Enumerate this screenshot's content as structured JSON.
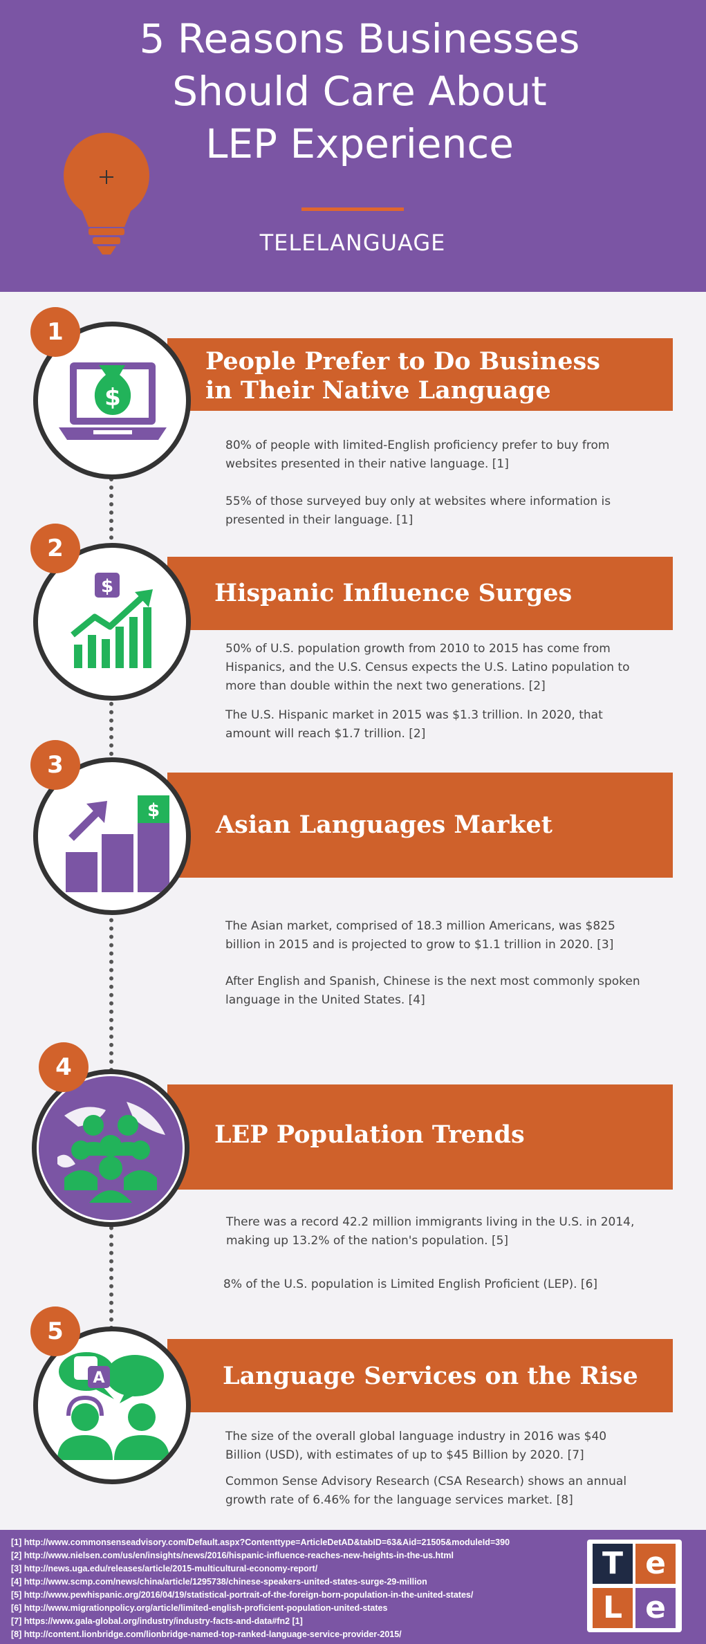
{
  "header": {
    "title_lines": [
      "5 Reasons Businesses",
      "Should Care About",
      "LEP Experience"
    ],
    "brand": "TELELANGUAGE",
    "icon": "lightbulb-icon"
  },
  "sections": [
    {
      "number": "1",
      "title_lines": [
        "People Prefer to Do Business",
        "in Their Native Language"
      ],
      "icon": "laptop-money-icon",
      "paragraphs": [
        "80% of people with limited-English proficiency prefer to buy from websites presented in their native language. [1]",
        "55% of those surveyed buy only at websites where information is presented in their language. [1]"
      ]
    },
    {
      "number": "2",
      "title_lines": [
        "Hispanic Influence Surges"
      ],
      "icon": "growth-chart-icon",
      "paragraphs": [
        "50% of U.S. population growth from 2010 to 2015 has come from Hispanics, and the U.S. Census expects the U.S. Latino population to more than double within the next two generations. [2]",
        "The U.S. Hispanic market in 2015 was $1.3 trillion. In 2020, that amount will reach $1.7 trillion. [2]"
      ]
    },
    {
      "number": "3",
      "title_lines": [
        "Asian Languages Market"
      ],
      "icon": "bar-growth-icon",
      "paragraphs": [
        "The Asian market, comprised of 18.3 million Americans, was $825 billion in 2015 and is projected to grow to $1.1 trillion in 2020. [3]",
        "After English and Spanish, Chinese is the next most commonly spoken language in the United States. [4]"
      ]
    },
    {
      "number": "4",
      "title_lines": [
        "LEP Population Trends"
      ],
      "icon": "globe-people-icon",
      "paragraphs": [
        "There was a record 42.2 million immigrants living in the U.S. in 2014, making up 13.2% of the nation's population. [5]",
        "8% of the U.S. population is Limited English Proficient (LEP). [6]"
      ]
    },
    {
      "number": "5",
      "title_lines": [
        "Language Services on the Rise"
      ],
      "icon": "interpreter-icon",
      "paragraphs": [
        "The size of the overall global language industry in 2016 was $40 Billion (USD), with estimates of up to $45 Billion by 2020. [7]",
        "Common Sense Advisory Research (CSA Research) shows an annual growth rate of 6.46% for the language services market. [8]"
      ]
    }
  ],
  "references": [
    "[1] http://www.commonsenseadvisory.com/Default.aspx?Contenttype=ArticleDetAD&tabID=63&Aid=21505&moduleId=390",
    "[2] http://www.nielsen.com/us/en/insights/news/2016/hispanic-influence-reaches-new-heights-in-the-us.html",
    "[3] http://news.uga.edu/releases/article/2015-multicultural-economy-report/",
    "[4] http://www.scmp.com/news/china/article/1295738/chinese-speakers-united-states-surge-29-million",
    "[5] http://www.pewhispanic.org/2016/04/19/statistical-portrait-of-the-foreign-born-population-in-the-united-states/",
    "[6] http://www.migrationpolicy.org/article/limited-english-proficient-population-united-states",
    "[7] https://www.gala-global.org/industry/industry-facts-and-data#fn2 [1]",
    "[8] http://content.lionbridge.com/lionbridge-named-top-ranked-language-service-provider-2015/"
  ],
  "logo": {
    "letters": [
      "T",
      "e",
      "L",
      "e"
    ],
    "name": "tele-logo"
  },
  "colors": {
    "purple": "#7b55a4",
    "orange": "#cf612b",
    "green": "#22b35a",
    "icon_purple": "#7b55a4"
  }
}
